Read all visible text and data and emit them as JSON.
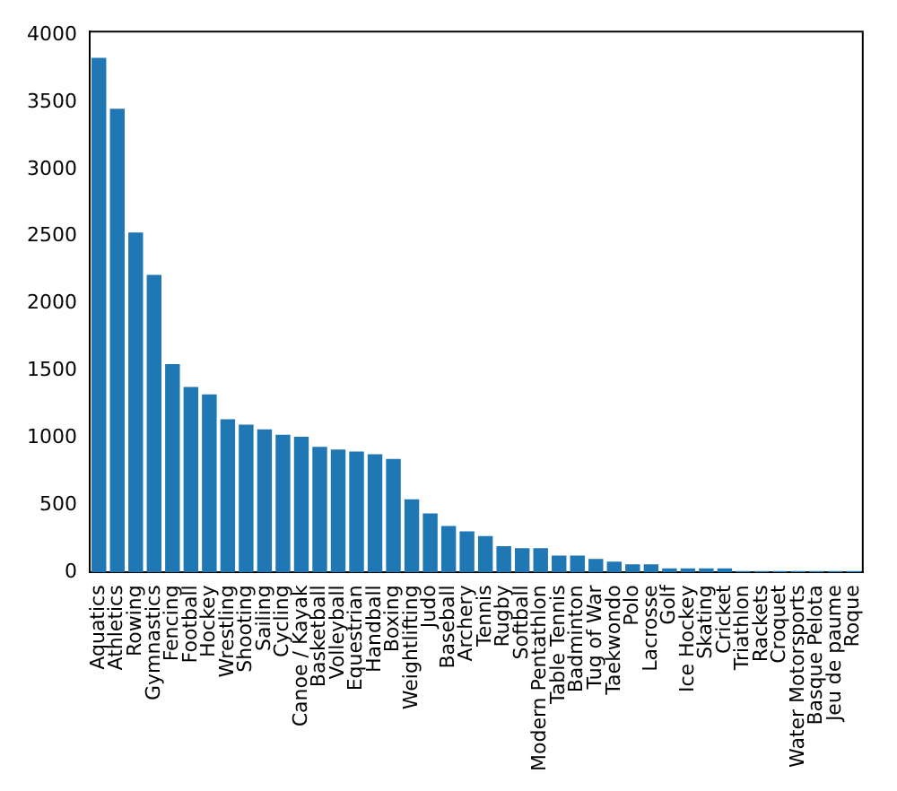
{
  "chart_data": {
    "type": "bar",
    "categories": [
      "Aquatics",
      "Athletics",
      "Rowing",
      "Gymnastics",
      "Fencing",
      "Football",
      "Hockey",
      "Wrestling",
      "Shooting",
      "Sailing",
      "Cycling",
      "Canoe / Kayak",
      "Basketball",
      "Volleyball",
      "Equestrian",
      "Handball",
      "Boxing",
      "Weightlifting",
      "Judo",
      "Baseball",
      "Archery",
      "Tennis",
      "Rugby",
      "Softball",
      "Modern Pentathlon",
      "Table Tennis",
      "Badminton",
      "Tug of War",
      "Taekwondo",
      "Polo",
      "Lacrosse",
      "Golf",
      "Ice Hockey",
      "Skating",
      "Cricket",
      "Triathlon",
      "Rackets",
      "Croquet",
      "Water Motorsports",
      "Basque Pelota",
      "Jeu de paume",
      "Roque"
    ],
    "values": [
      3830,
      3450,
      2530,
      2215,
      1550,
      1380,
      1325,
      1140,
      1100,
      1065,
      1025,
      1010,
      935,
      915,
      900,
      880,
      845,
      545,
      440,
      345,
      305,
      270,
      195,
      180,
      180,
      125,
      125,
      100,
      80,
      60,
      60,
      30,
      30,
      30,
      30,
      10,
      10,
      10,
      10,
      10,
      10,
      10
    ],
    "color": "#1f77b4",
    "ylim": [
      0,
      4025
    ],
    "yticks": [
      0,
      500,
      1000,
      1500,
      2000,
      2500,
      3000,
      3500,
      4000
    ],
    "grid": false,
    "legend": false
  }
}
